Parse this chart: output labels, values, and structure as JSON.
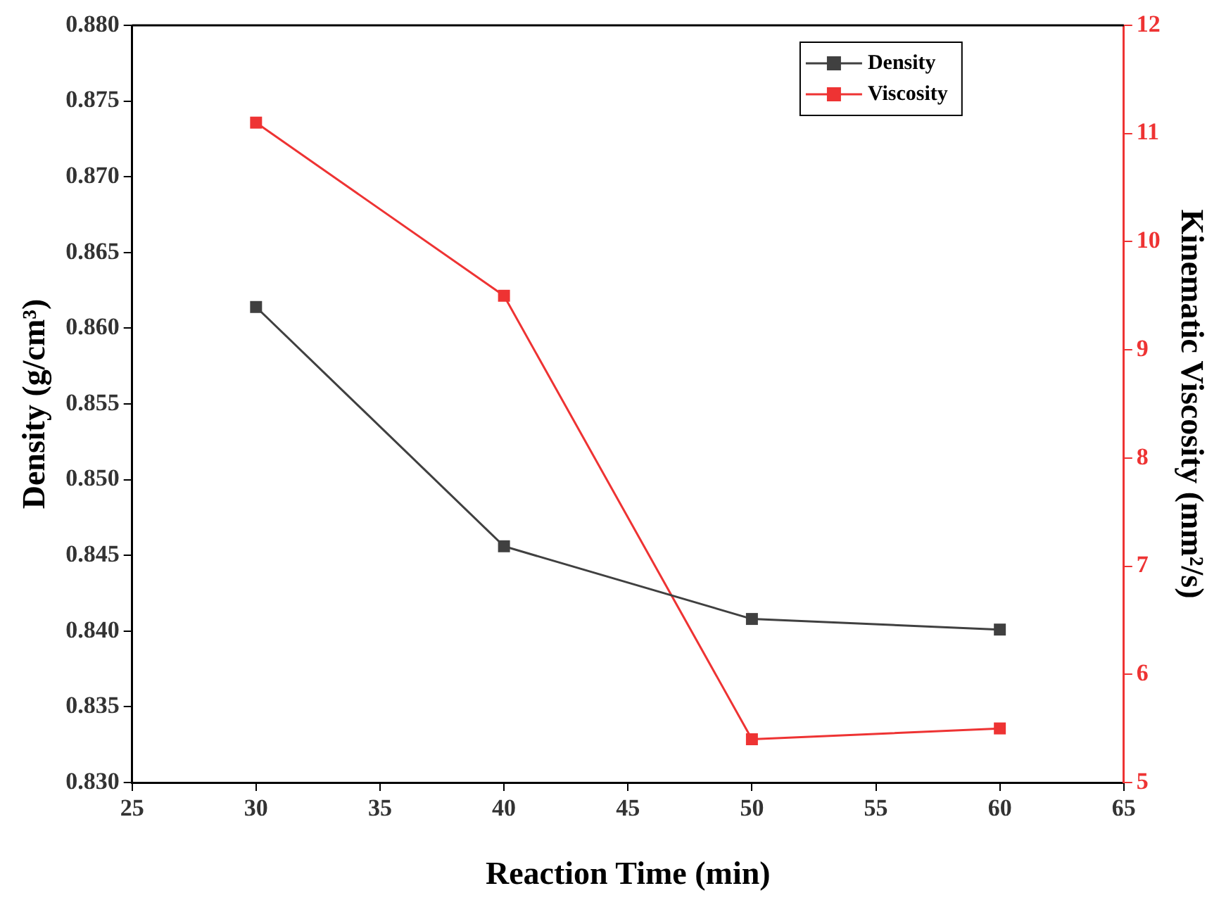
{
  "chart_data": {
    "type": "line",
    "xlabel": "Reaction Time (min)",
    "ylabel": "Density (g/cm³)",
    "y2label": "Kinematic Viscosity (mm²/s)",
    "x": [
      30,
      40,
      50,
      60
    ],
    "series": [
      {
        "name": "Density",
        "color": "#404040",
        "values": [
          0.8614,
          0.8456,
          0.8408,
          0.8401
        ]
      },
      {
        "name": "Viscosity",
        "color": "#ee3333",
        "axis": "y2",
        "values": [
          11.1,
          9.5,
          5.4,
          5.5
        ]
      }
    ],
    "xlim": [
      25,
      65
    ],
    "xticks": [
      25,
      30,
      35,
      40,
      45,
      50,
      55,
      60,
      65
    ],
    "ylim": [
      0.83,
      0.88
    ],
    "yticks": [
      {
        "value": 0.83,
        "label": "0.830"
      },
      {
        "value": 0.835,
        "label": "0.835"
      },
      {
        "value": 0.84,
        "label": "0.840"
      },
      {
        "value": 0.845,
        "label": "0.845"
      },
      {
        "value": 0.85,
        "label": "0.850"
      },
      {
        "value": 0.855,
        "label": "0.855"
      },
      {
        "value": 0.86,
        "label": "0.860"
      },
      {
        "value": 0.865,
        "label": "0.865"
      },
      {
        "value": 0.87,
        "label": "0.870"
      },
      {
        "value": 0.875,
        "label": "0.875"
      },
      {
        "value": 0.88,
        "label": "0.880"
      }
    ],
    "y2lim": [
      5,
      12
    ],
    "y2ticks": [
      5,
      6,
      7,
      8,
      9,
      10,
      11,
      12
    ],
    "grid": false,
    "legend": "top right",
    "marker": "square",
    "line_style": "solid"
  }
}
